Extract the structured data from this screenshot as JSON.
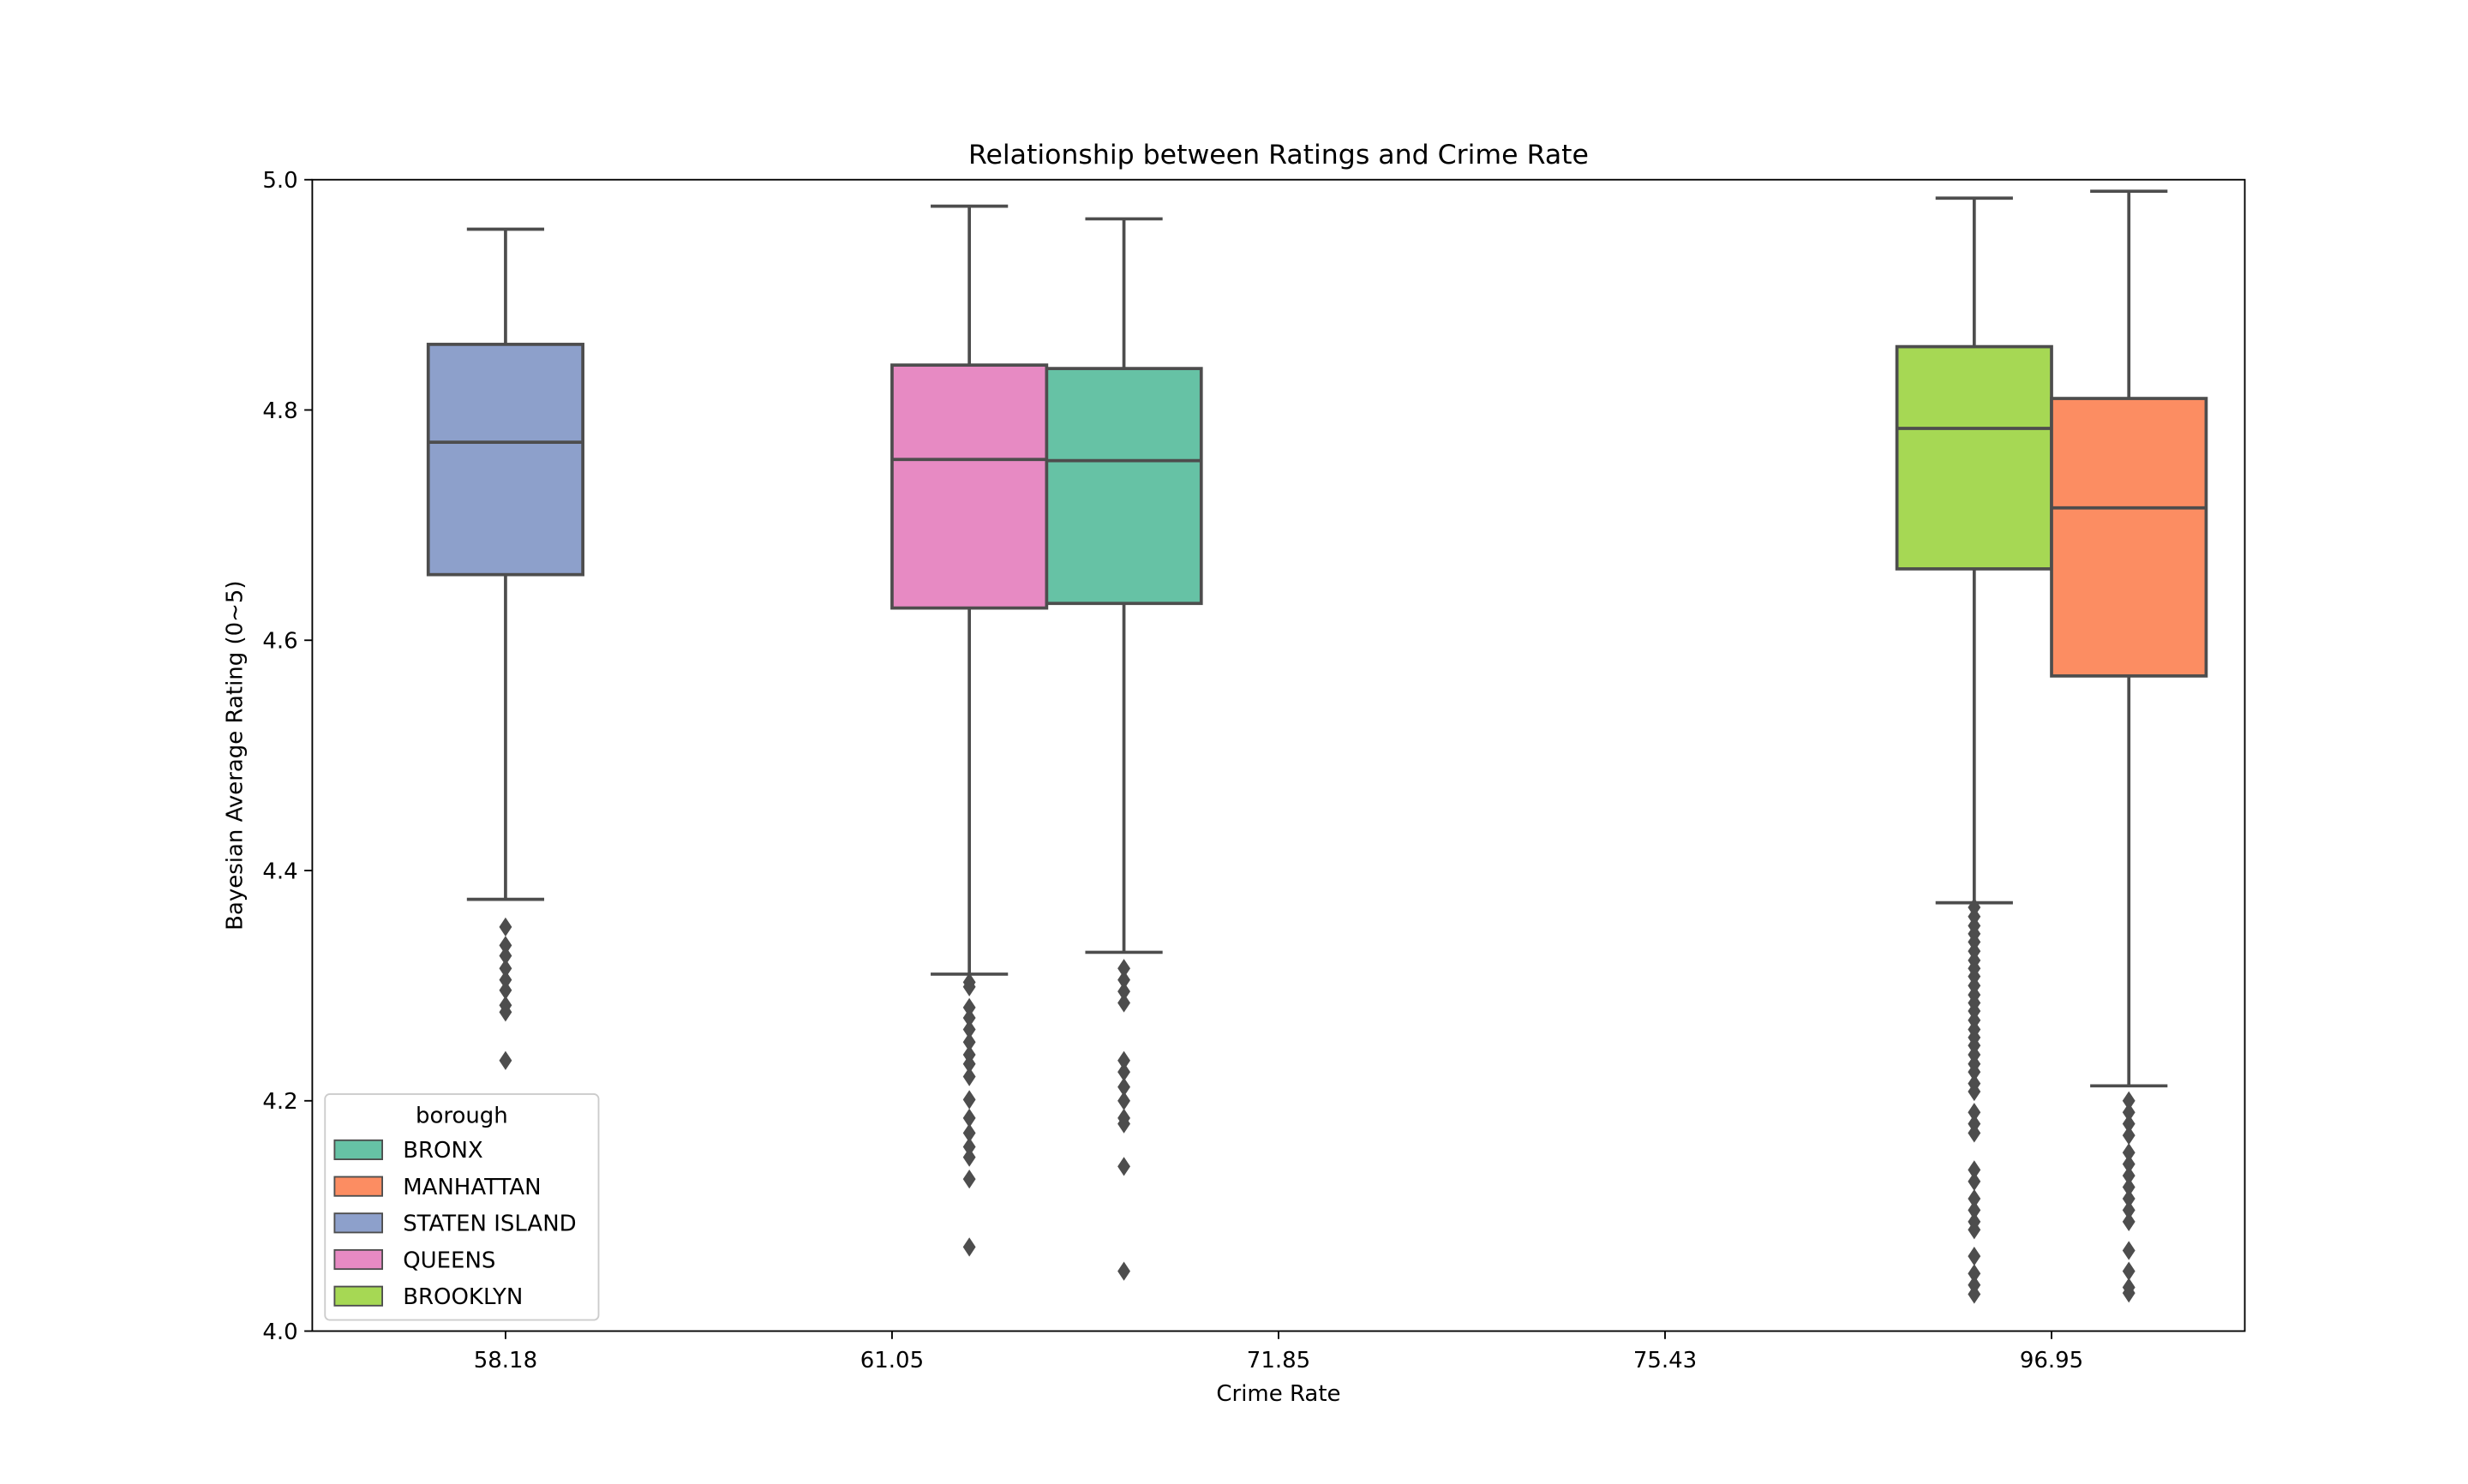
{
  "chart_data": {
    "type": "box",
    "title": "Relationship between Ratings and Crime Rate",
    "xlabel": "Crime Rate",
    "ylabel": "Bayesian Average Rating (0~5)",
    "categories": [
      "58.18",
      "61.05",
      "71.85",
      "75.43",
      "96.95"
    ],
    "ylim": [
      4.0,
      5.0
    ],
    "yticks": [
      "4.0",
      "4.2",
      "4.4",
      "4.6",
      "4.8",
      "5.0"
    ],
    "grid": false,
    "legend": {
      "title": "borough",
      "position": "lower-left",
      "entries": [
        {
          "name": "BRONX",
          "color": "#66c2a5"
        },
        {
          "name": "MANHATTAN",
          "color": "#fc8d62"
        },
        {
          "name": "STATEN ISLAND",
          "color": "#8da0cb"
        },
        {
          "name": "QUEENS",
          "color": "#e78ac3"
        },
        {
          "name": "BROOKLYN",
          "color": "#a6d854"
        }
      ]
    },
    "box_edge_color": "#4d4d4d",
    "series": [
      {
        "name": "STATEN ISLAND",
        "x_pos": 0.0,
        "color": "#8da0cb",
        "whisker_low": 4.375,
        "q1": 4.657,
        "median": 4.772,
        "q3": 4.857,
        "whisker_high": 4.957,
        "outliers": [
          4.351,
          4.335,
          4.326,
          4.315,
          4.305,
          4.296,
          4.283,
          4.277,
          4.235
        ]
      },
      {
        "name": "QUEENS",
        "x_pos": 1.2,
        "color": "#e78ac3",
        "whisker_low": 4.31,
        "q1": 4.628,
        "median": 4.757,
        "q3": 4.839,
        "whisker_high": 4.977,
        "outliers": [
          4.303,
          4.299,
          4.281,
          4.272,
          4.262,
          4.251,
          4.24,
          4.232,
          4.221,
          4.201,
          4.185,
          4.172,
          4.16,
          4.151,
          4.132,
          4.073
        ]
      },
      {
        "name": "BRONX",
        "x_pos": 1.6,
        "color": "#66c2a5",
        "whisker_low": 4.329,
        "q1": 4.632,
        "median": 4.756,
        "q3": 4.836,
        "whisker_high": 4.966,
        "outliers": [
          4.315,
          4.305,
          4.295,
          4.285,
          4.235,
          4.225,
          4.212,
          4.2,
          4.185,
          4.18,
          4.143,
          4.052
        ]
      },
      {
        "name": "BROOKLYN",
        "x_pos": 3.8,
        "color": "#a6d854",
        "whisker_low": 4.372,
        "q1": 4.662,
        "median": 4.784,
        "q3": 4.855,
        "whisker_high": 4.984,
        "outliers": [
          4.368,
          4.36,
          4.352,
          4.345,
          4.338,
          4.33,
          4.322,
          4.315,
          4.308,
          4.3,
          4.292,
          4.285,
          4.278,
          4.27,
          4.262,
          4.255,
          4.248,
          4.24,
          4.232,
          4.225,
          4.215,
          4.208,
          4.19,
          4.18,
          4.172,
          4.14,
          4.13,
          4.115,
          4.105,
          4.095,
          4.088,
          4.065,
          4.05,
          4.04,
          4.032
        ]
      },
      {
        "name": "MANHATTAN",
        "x_pos": 4.2,
        "color": "#fc8d62",
        "whisker_low": 4.213,
        "q1": 4.569,
        "median": 4.715,
        "q3": 4.81,
        "whisker_high": 4.99,
        "outliers": [
          4.2,
          4.19,
          4.18,
          4.17,
          4.155,
          4.145,
          4.135,
          4.125,
          4.115,
          4.105,
          4.095,
          4.07,
          4.052,
          4.038,
          4.033
        ]
      }
    ]
  }
}
